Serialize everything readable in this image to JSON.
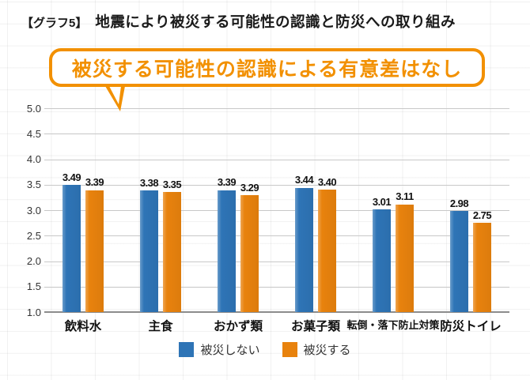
{
  "header": {
    "tag": "【グラフ5】",
    "title": "地震により被災する可能性の認識と防災への取り組み"
  },
  "callout": {
    "text": "被災する可能性の認識による有意差はなし",
    "color": "#F29000"
  },
  "chart_data": {
    "type": "bar",
    "categories": [
      "飲料水",
      "主食",
      "おかず類",
      "お菓子類",
      "転倒・落下防止対策",
      "防災トイレ"
    ],
    "series": [
      {
        "name": "被災しない",
        "color": "#2E74B6",
        "values": [
          3.49,
          3.38,
          3.39,
          3.44,
          3.01,
          2.98
        ]
      },
      {
        "name": "被災する",
        "color": "#E8820D",
        "values": [
          3.39,
          3.35,
          3.29,
          3.4,
          3.11,
          2.75
        ]
      }
    ],
    "ylim": [
      1.0,
      5.0
    ],
    "ytick_step": 0.5,
    "grid": true,
    "legend_position": "bottom",
    "value_labels": true
  },
  "colors": {
    "accent_orange": "#F29000",
    "bar_blue": "#2E74B6",
    "bar_orange": "#E8820D",
    "gridline": "#c8c8c8",
    "axis_line": "#8c8c8c"
  }
}
